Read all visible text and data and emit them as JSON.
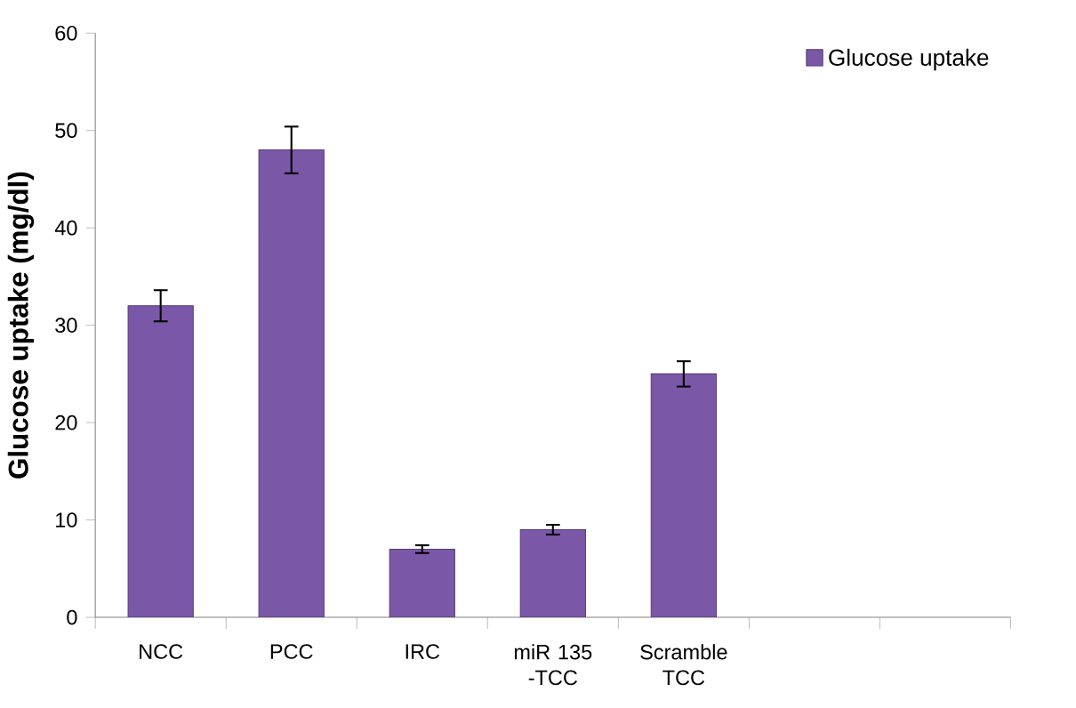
{
  "chart_data": {
    "type": "bar",
    "ylabel": "Glucose uptake (mg/dl)",
    "categories": [
      "NCC",
      "PCC",
      "IRC",
      "miR 135 -TCC",
      "Scramble TCC",
      null,
      null
    ],
    "series": [
      {
        "name": "Glucose uptake",
        "color": "#7b57a8",
        "values": [
          32,
          48,
          7,
          9,
          25,
          null,
          null
        ],
        "errors": [
          1.6,
          2.4,
          0.4,
          0.5,
          1.3,
          null,
          null
        ]
      }
    ],
    "ylim": [
      0,
      60
    ],
    "yticks": [
      0,
      10,
      20,
      30,
      40,
      50,
      60
    ],
    "grid": false,
    "legend": "top right"
  }
}
